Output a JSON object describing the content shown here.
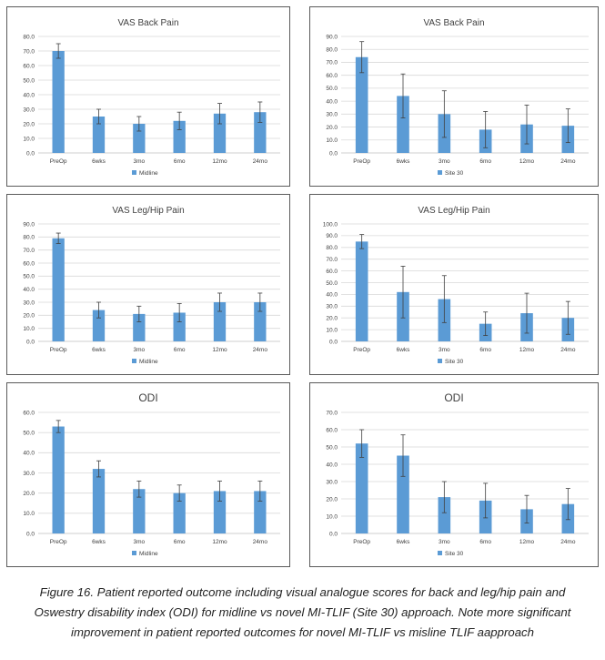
{
  "colors": {
    "bar": "#5b9bd5",
    "grid": "#d9d9d9",
    "axis": "#bfbfbf",
    "error": "#404040",
    "text": "#404040"
  },
  "chart_data": [
    {
      "id": "c1",
      "type": "bar",
      "title": "VAS Back Pain",
      "categories": [
        "PreOp",
        "6wks",
        "3mo",
        "6mo",
        "12mo",
        "24mo"
      ],
      "series": [
        {
          "name": "Midline",
          "values": [
            70,
            25,
            20,
            22,
            27,
            28
          ],
          "error": [
            5,
            5,
            5,
            6,
            7,
            7
          ]
        }
      ],
      "ylim": [
        0,
        80
      ],
      "ytick_step": 10,
      "ytick_labels": [
        "0.0",
        "10.0",
        "20.0",
        "30.0",
        "40.0",
        "50.0",
        "60.0",
        "70.0",
        "80.0"
      ],
      "legend": "bottom",
      "xlabel": "",
      "ylabel": ""
    },
    {
      "id": "c2",
      "type": "bar",
      "title": "VAS Back Pain",
      "categories": [
        "PreOp",
        "6wks",
        "3mo",
        "6mo",
        "12mo",
        "24mo"
      ],
      "series": [
        {
          "name": "Site 30",
          "values": [
            74,
            44,
            30,
            18,
            22,
            21
          ],
          "error": [
            12,
            17,
            18,
            14,
            15,
            13
          ]
        }
      ],
      "ylim": [
        0,
        90
      ],
      "ytick_step": 10,
      "ytick_labels": [
        "0.0",
        "10.0",
        "20.0",
        "30.0",
        "40.0",
        "50.0",
        "60.0",
        "70.0",
        "80.0",
        "90.0"
      ],
      "legend": "bottom",
      "xlabel": "",
      "ylabel": ""
    },
    {
      "id": "c3",
      "type": "bar",
      "title": "VAS Leg/Hip Pain",
      "categories": [
        "PreOp",
        "6wks",
        "3mo",
        "6mo",
        "12mo",
        "24mo"
      ],
      "series": [
        {
          "name": "Midline",
          "values": [
            79,
            24,
            21,
            22,
            30,
            30
          ],
          "error": [
            4,
            6,
            6,
            7,
            7,
            7
          ]
        }
      ],
      "ylim": [
        0,
        90
      ],
      "ytick_step": 10,
      "ytick_labels": [
        "0.0",
        "10.0",
        "20.0",
        "30.0",
        "40.0",
        "50.0",
        "60.0",
        "70.0",
        "80.0",
        "90.0"
      ],
      "legend": "bottom",
      "xlabel": "",
      "ylabel": ""
    },
    {
      "id": "c4",
      "type": "bar",
      "title": "VAS Leg/Hip Pain",
      "categories": [
        "PreOp",
        "6wks",
        "3mo",
        "6mo",
        "12mo",
        "24mo"
      ],
      "series": [
        {
          "name": "Site 30",
          "values": [
            85,
            42,
            36,
            15,
            24,
            20
          ],
          "error": [
            6,
            22,
            20,
            10,
            17,
            14
          ]
        }
      ],
      "ylim": [
        0,
        100
      ],
      "ytick_step": 10,
      "ytick_labels": [
        "0.0",
        "10.0",
        "20.0",
        "30.0",
        "40.0",
        "50.0",
        "60.0",
        "70.0",
        "80.0",
        "90.0",
        "100.0"
      ],
      "legend": "bottom",
      "xlabel": "",
      "ylabel": ""
    },
    {
      "id": "c5",
      "type": "bar",
      "title": "ODI",
      "categories": [
        "PreOp",
        "6wks",
        "3mo",
        "6mo",
        "12mo",
        "24mo"
      ],
      "series": [
        {
          "name": "Midline",
          "values": [
            53,
            32,
            22,
            20,
            21,
            21
          ],
          "error": [
            3,
            4,
            4,
            4,
            5,
            5
          ]
        }
      ],
      "ylim": [
        0,
        60
      ],
      "ytick_step": 10,
      "ytick_labels": [
        "0.0",
        "10.0",
        "20.0",
        "30.0",
        "40.0",
        "50.0",
        "60.0"
      ],
      "legend": "bottom",
      "xlabel": "",
      "ylabel": ""
    },
    {
      "id": "c6",
      "type": "bar",
      "title": "ODI",
      "categories": [
        "PreOp",
        "6wks",
        "3mo",
        "6mo",
        "12mo",
        "24mo"
      ],
      "series": [
        {
          "name": "Site 30",
          "values": [
            52,
            45,
            21,
            19,
            14,
            17
          ],
          "error": [
            8,
            12,
            9,
            10,
            8,
            9
          ]
        }
      ],
      "ylim": [
        0,
        70
      ],
      "ytick_step": 10,
      "ytick_labels": [
        "0.0",
        "10.0",
        "20.0",
        "30.0",
        "40.0",
        "50.0",
        "60.0",
        "70.0"
      ],
      "legend": "bottom",
      "xlabel": "",
      "ylabel": ""
    }
  ],
  "caption": {
    "line1": "Figure 16. Patient reported outcome including visual analogue scores for back and leg/hip pain and",
    "line2": "Oswestry disability index (ODI) for midline vs novel MI-TLIF (Site 30) approach. Note more significant",
    "line3": "improvement in patient reported outcomes for novel MI-TLIF vs misline TLIF aapproach"
  }
}
